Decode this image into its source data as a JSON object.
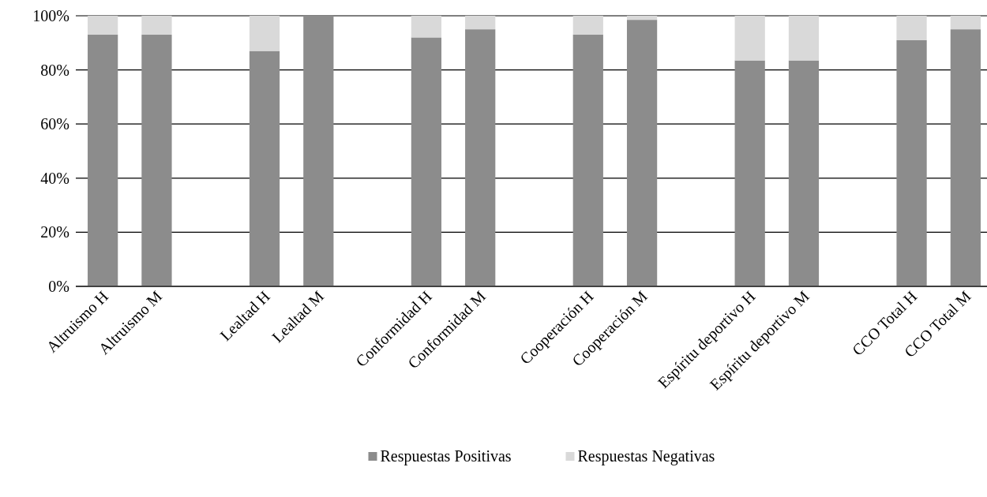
{
  "chart_data": {
    "type": "bar",
    "stacked": true,
    "categories": [
      "Altruismo H",
      "Altruismo M",
      null,
      "Lealtad H",
      "Lealtad M",
      null,
      "Conformidad H",
      "Conformidad M",
      null,
      "Cooperación H",
      "Cooperación M",
      null,
      "Espíritu deportivo H",
      "Espíritu deportivo M",
      null,
      "CCO Total H",
      "CCO Total M"
    ],
    "series": [
      {
        "name": "Respuestas Positivas",
        "color": "#8c8c8c",
        "values": [
          93,
          93,
          null,
          87,
          100,
          null,
          92,
          95,
          null,
          93,
          98.5,
          null,
          83.5,
          83.5,
          null,
          91,
          95
        ]
      },
      {
        "name": "Respuestas Negativas",
        "color": "#d9d9d9",
        "values": [
          7,
          7,
          null,
          13,
          0,
          null,
          8,
          5,
          null,
          7,
          1.5,
          null,
          16.5,
          16.5,
          null,
          9,
          5
        ]
      }
    ],
    "ylim": [
      0,
      100
    ],
    "yticks": [
      {
        "value": 0,
        "label": "0%"
      },
      {
        "value": 20,
        "label": "20%"
      },
      {
        "value": 40,
        "label": "40%"
      },
      {
        "value": 60,
        "label": "60%"
      },
      {
        "value": 80,
        "label": "80%"
      },
      {
        "value": 100,
        "label": "100%"
      }
    ],
    "grid": "y",
    "legend": "bottom"
  }
}
